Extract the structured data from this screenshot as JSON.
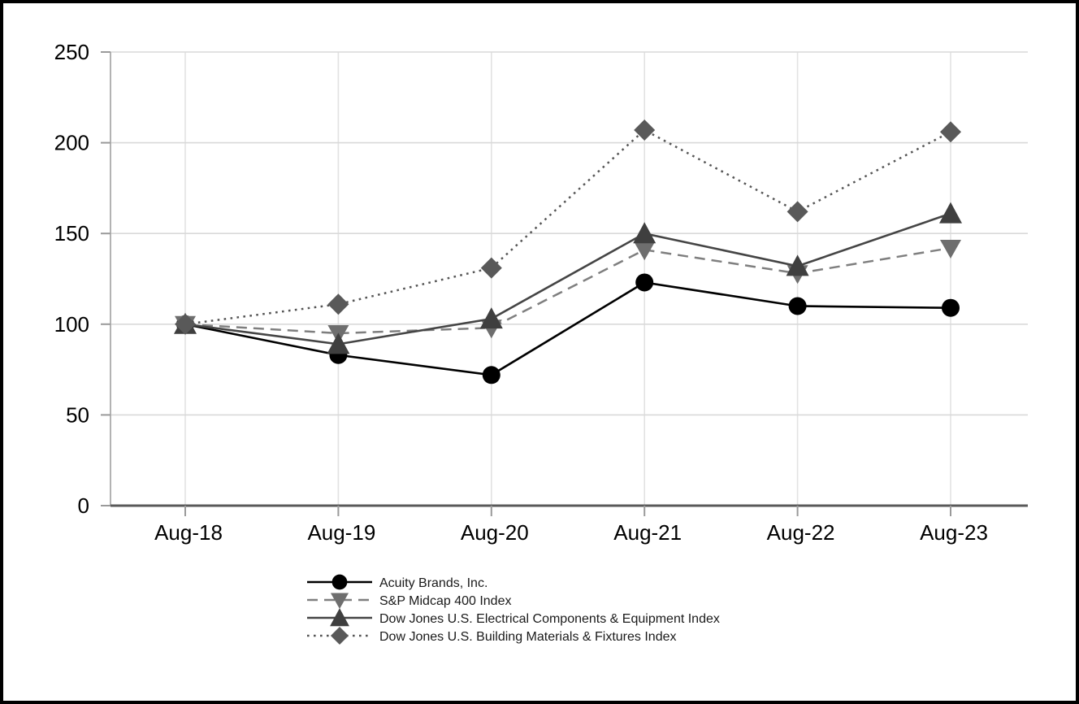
{
  "chart_data": {
    "type": "line",
    "title": "",
    "xlabel": "",
    "ylabel": "",
    "categories": [
      "Aug-18",
      "Aug-19",
      "Aug-20",
      "Aug-21",
      "Aug-22",
      "Aug-23"
    ],
    "series": [
      {
        "name": "Acuity Brands, Inc.",
        "values": [
          100,
          83,
          72,
          123,
          110,
          109
        ],
        "line_style": "solid",
        "line_color": "#000000",
        "marker": "circle",
        "marker_color": "#000000"
      },
      {
        "name": "S&P Midcap 400 Index",
        "values": [
          100,
          95,
          98,
          141,
          128,
          142
        ],
        "line_style": "dashed",
        "line_color": "#7f7f7f",
        "marker": "triangle-down",
        "marker_color": "#6e6e6e"
      },
      {
        "name": "Dow Jones U.S. Electrical Components & Equipment Index",
        "values": [
          100,
          89,
          103,
          150,
          132,
          161
        ],
        "line_style": "solid",
        "line_color": "#454545",
        "marker": "triangle-up",
        "marker_color": "#3f3f3f"
      },
      {
        "name": "Dow Jones U.S. Building Materials & Fixtures Index",
        "values": [
          100,
          111,
          131,
          207,
          162,
          206
        ],
        "line_style": "dotted",
        "line_color": "#555555",
        "marker": "diamond",
        "marker_color": "#595959"
      }
    ],
    "ylim": [
      0,
      250
    ],
    "ytick_step": 50,
    "ytick_labels": [
      "0",
      "50",
      "100",
      "150",
      "200",
      "250"
    ],
    "grid": true,
    "legend_position": "bottom-left"
  },
  "colors": {
    "background": "#ffffff",
    "frame_border": "#000000",
    "grid_horizontal": "#d9d9d9",
    "grid_vertical": "#e2e2e2",
    "x_axis": "#595959",
    "y_axis": "#b3b3b3",
    "tick": "#9a9a9a",
    "label_text": "#000000"
  }
}
